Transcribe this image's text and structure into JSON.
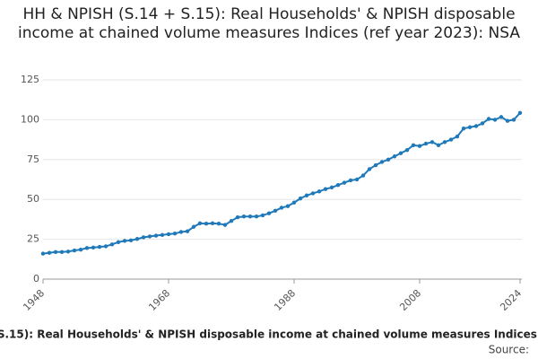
{
  "chart_data": {
    "type": "line",
    "title": "HH & NPISH (S.14 + S.15): Real Households' & NPISH disposable income at chained volume measures Indices (ref year 2023): NSA",
    "source": "Source:",
    "x": [
      1948,
      1949,
      1950,
      1951,
      1952,
      1953,
      1954,
      1955,
      1956,
      1957,
      1958,
      1959,
      1960,
      1961,
      1962,
      1963,
      1964,
      1965,
      1966,
      1967,
      1968,
      1969,
      1970,
      1971,
      1972,
      1973,
      1974,
      1975,
      1976,
      1977,
      1978,
      1979,
      1980,
      1981,
      1982,
      1983,
      1984,
      1985,
      1986,
      1987,
      1988,
      1989,
      1990,
      1991,
      1992,
      1993,
      1994,
      1995,
      1996,
      1997,
      1998,
      1999,
      2000,
      2001,
      2002,
      2003,
      2004,
      2005,
      2006,
      2007,
      2008,
      2009,
      2010,
      2011,
      2012,
      2013,
      2014,
      2015,
      2016,
      2017,
      2018,
      2019,
      2020,
      2021,
      2022,
      2023,
      2024
    ],
    "series": [
      {
        "name": "HH & NPISH (S.14 + S.15): Real Households' & NPISH disposable income at chained volume measures Indices (ref year 2023): NSA",
        "color": "#2079b9",
        "values": [
          16,
          16.5,
          17,
          17,
          17.3,
          18,
          18.5,
          19.5,
          19.8,
          20.2,
          20.6,
          21.8,
          23.2,
          24,
          24.3,
          25.2,
          26.2,
          26.8,
          27.3,
          27.7,
          28.2,
          28.6,
          29.6,
          30,
          32.8,
          35,
          34.8,
          35,
          34.8,
          34,
          36.5,
          38.8,
          39.3,
          39.3,
          39.3,
          40,
          41.3,
          42.9,
          44.8,
          45.8,
          48,
          50.6,
          52.5,
          53.8,
          55,
          56.5,
          57.5,
          59,
          60.5,
          62,
          62.5,
          65,
          69,
          71.5,
          73.5,
          75,
          77,
          79,
          81,
          84,
          83.5,
          85,
          86,
          84,
          86,
          87.5,
          89.5,
          94.5,
          95.3,
          96,
          97.7,
          100.5,
          100,
          101.7,
          99.3,
          100,
          104.3
        ]
      }
    ],
    "xlim": [
      1948,
      2024
    ],
    "xticks": [
      1948,
      1968,
      1988,
      2008,
      2024
    ],
    "ylim": [
      0,
      125
    ],
    "yticks": [
      0,
      25,
      50,
      75,
      100,
      125
    ],
    "grid": true
  }
}
